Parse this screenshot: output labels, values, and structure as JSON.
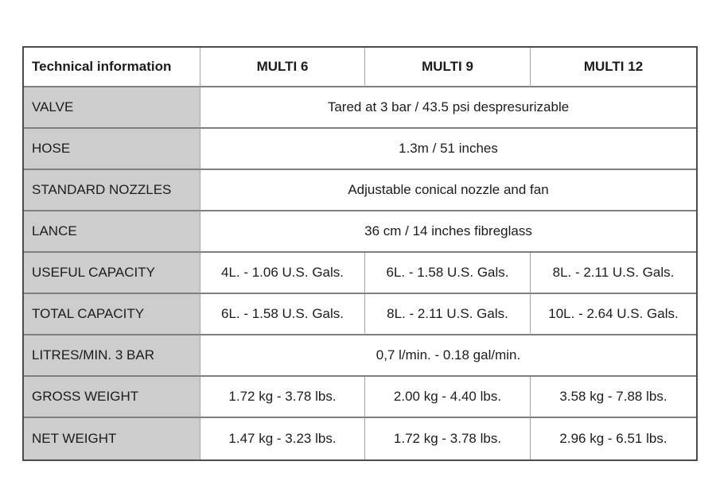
{
  "table": {
    "header": {
      "label": "Technical information",
      "multi6": "MULTI 6",
      "multi9": "MULTI 9",
      "multi12": "MULTI 12"
    },
    "rows": [
      {
        "label": "VALVE",
        "span": "Tared at 3 bar / 43.5 psi despresurizable"
      },
      {
        "label": "HOSE",
        "span": "1.3m / 51 inches"
      },
      {
        "label": "STANDARD NOZZLES",
        "span": "Adjustable conical nozzle and fan"
      },
      {
        "label": "LANCE",
        "span": "36 cm / 14 inches fibreglass"
      },
      {
        "label": "USEFUL CAPACITY",
        "values": [
          "4L. - 1.06 U.S. Gals.",
          "6L. - 1.58 U.S. Gals.",
          "8L. - 2.11 U.S. Gals."
        ]
      },
      {
        "label": "TOTAL CAPACITY",
        "values": [
          "6L. - 1.58 U.S. Gals.",
          "8L. - 2.11 U.S. Gals.",
          "10L. - 2.64 U.S. Gals."
        ]
      },
      {
        "label": "LITRES/MIN. 3 BAR",
        "span": "0,7 l/min. - 0.18 gal/min."
      },
      {
        "label": "GROSS WEIGHT",
        "values": [
          "1.72 kg - 3.78 lbs.",
          "2.00 kg - 4.40 lbs.",
          "3.58 kg - 7.88 lbs."
        ]
      },
      {
        "label": "NET WEIGHT",
        "values": [
          "1.47 kg - 3.23 lbs.",
          "1.72 kg - 3.78 lbs.",
          "2.96 kg - 6.51 lbs."
        ]
      }
    ],
    "colors": {
      "label_column_bg": "#cdcdcd",
      "outer_border": "#4c4c4c",
      "horizontal_border": "#7e7e7e",
      "vertical_border": "#a6a6a6",
      "text": "#1c1c1c",
      "page_bg": "#ffffff"
    }
  }
}
